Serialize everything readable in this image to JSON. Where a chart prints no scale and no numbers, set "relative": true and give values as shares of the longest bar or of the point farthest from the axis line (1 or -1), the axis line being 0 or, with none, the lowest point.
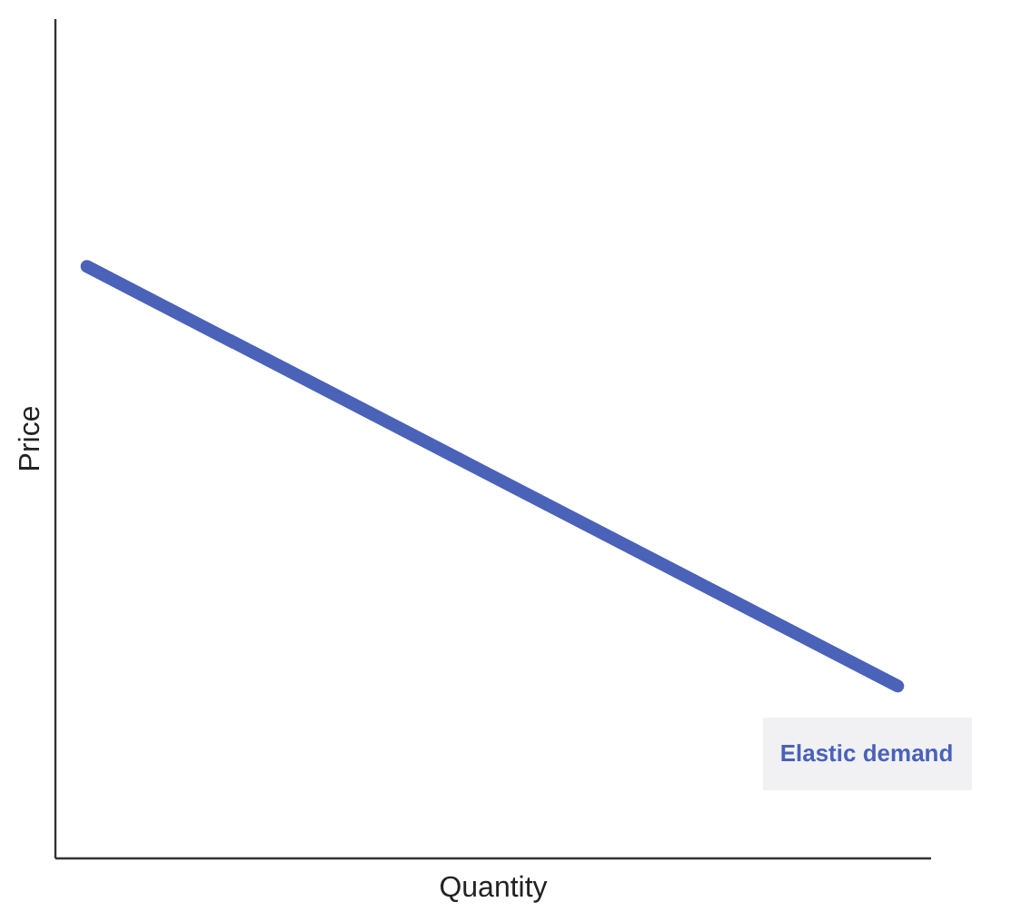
{
  "chart_data": {
    "type": "line",
    "relative": true,
    "xlabel": "Quantity",
    "ylabel": "Price",
    "categories": [
      null,
      null
    ],
    "series": [
      {
        "color": "#4a62b8",
        "values": [
          1,
          0.29
        ]
      }
    ],
    "annotations": [
      "Elastic demand"
    ]
  }
}
